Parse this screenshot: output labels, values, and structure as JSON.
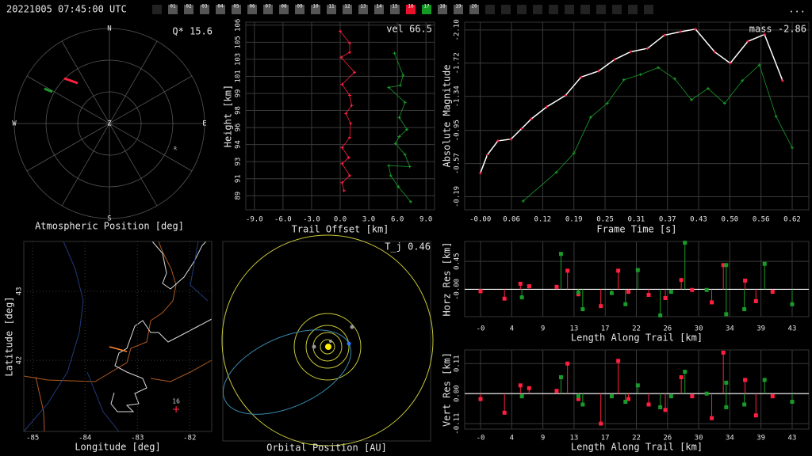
{
  "header": {
    "timestamp": "20221005 07:45:00 UTC",
    "menu": "...",
    "stations": [
      {
        "label": "01"
      },
      {
        "label": "02"
      },
      {
        "label": "03"
      },
      {
        "label": "04"
      },
      {
        "label": "05"
      },
      {
        "label": "06"
      },
      {
        "label": "07"
      },
      {
        "label": "08"
      },
      {
        "label": "09"
      },
      {
        "label": "10"
      },
      {
        "label": "11"
      },
      {
        "label": "12"
      },
      {
        "label": "13"
      },
      {
        "label": "14"
      },
      {
        "label": "15"
      },
      {
        "label": "16",
        "color": "#e8102a"
      },
      {
        "label": "17",
        "color": "#129a22"
      },
      {
        "label": "18"
      },
      {
        "label": "19"
      },
      {
        "label": "20"
      }
    ]
  },
  "chart_data": [
    {
      "type": "polar",
      "xlabel": "Atmospheric Position [deg]",
      "annotation": "Q* 15.6",
      "directions": [
        "N",
        "E",
        "S",
        "W"
      ],
      "center_label": "Z",
      "marker_label": "R"
    },
    {
      "type": "line",
      "xlabel": "Trail Offset [km]",
      "ylabel": "Height [km]",
      "annotation": "vel 66.5",
      "grid": true,
      "xlim": [
        -9.9,
        9.9
      ],
      "ylim": [
        87.8,
        106.5
      ],
      "xticks": [
        {
          "value": -9,
          "label": "-9.0"
        },
        {
          "value": -6,
          "label": "-6.0"
        },
        {
          "value": -3,
          "label": "-3.0"
        },
        {
          "value": 0,
          "label": "0.0"
        },
        {
          "value": 3,
          "label": "3.0"
        },
        {
          "value": 6,
          "label": "6.0"
        },
        {
          "value": 9,
          "label": "9.0"
        }
      ],
      "yticks": [
        {
          "value": 89.2,
          "label": "89"
        },
        {
          "value": 90.9,
          "label": "91"
        },
        {
          "value": 92.6,
          "label": "93"
        },
        {
          "value": 94.3,
          "label": "94"
        },
        {
          "value": 96.0,
          "label": "96"
        },
        {
          "value": 97.7,
          "label": "98"
        },
        {
          "value": 99.4,
          "label": "99"
        },
        {
          "value": 101.1,
          "label": "101"
        },
        {
          "value": 102.8,
          "label": "103"
        },
        {
          "value": 104.5,
          "label": "105"
        },
        {
          "value": 106.2,
          "label": "106"
        }
      ],
      "series": [
        {
          "color": "#ff2040",
          "x": [
            0.0,
            1.0,
            1.0,
            0.1,
            1.5,
            0.2,
            1.0,
            1.2,
            0.6,
            1.1,
            1.0,
            0.2,
            0.9,
            0.2,
            1.0,
            0.2,
            0.4
          ],
          "values": [
            105.6,
            104.4,
            103.5,
            103.0,
            101.5,
            100.3,
            99.2,
            98.2,
            97.4,
            96.4,
            95.0,
            94.0,
            93.0,
            92.4,
            91.2,
            90.5,
            89.7
          ]
        },
        {
          "color": "#1a9a2a",
          "x": [
            5.7,
            6.6,
            6.3,
            5.1,
            6.8,
            6.2,
            7.0,
            6.2,
            5.8,
            6.8,
            7.3,
            5.1,
            5.3,
            6.1,
            7.4
          ],
          "values": [
            103.4,
            101.2,
            100.2,
            100.0,
            98.5,
            97.0,
            95.8,
            95.1,
            94.4,
            93.3,
            92.1,
            92.2,
            91.2,
            90.1,
            88.6
          ]
        }
      ]
    },
    {
      "type": "line",
      "xlabel": "Frame Time [s]",
      "ylabel": "Absolute Magnitude",
      "annotation": "mass -2.86",
      "grid": true,
      "xlim": [
        -0.031,
        0.652
      ],
      "ylim": [
        -0.04,
        -2.19
      ],
      "xticks": [
        {
          "value": 0,
          "label": "-0.00"
        },
        {
          "value": 0.0619,
          "label": "0.06"
        },
        {
          "value": 0.1238,
          "label": "0.12"
        },
        {
          "value": 0.1857,
          "label": "0.19"
        },
        {
          "value": 0.2476,
          "label": "0.25"
        },
        {
          "value": 0.3095,
          "label": "0.31"
        },
        {
          "value": 0.3714,
          "label": "0.37"
        },
        {
          "value": 0.4333,
          "label": "0.43"
        },
        {
          "value": 0.4952,
          "label": "0.50"
        },
        {
          "value": 0.5571,
          "label": "0.56"
        },
        {
          "value": 0.619,
          "label": "0.62"
        }
      ],
      "yticks": [
        {
          "value": -2.1,
          "label": "-2.10"
        },
        -1.72,
        -1.34,
        -0.95,
        -0.57,
        -0.19
      ],
      "series": [
        {
          "color": "#ff2040",
          "line_color": "#ffffff",
          "x": [
            0.0,
            0.014,
            0.035,
            0.061,
            0.082,
            0.101,
            0.132,
            0.169,
            0.2,
            0.235,
            0.266,
            0.298,
            0.332,
            0.365,
            0.397,
            0.427,
            0.465,
            0.496,
            0.531,
            0.564,
            0.6
          ],
          "values": [
            -0.46,
            -0.67,
            -0.83,
            -0.85,
            -0.97,
            -1.08,
            -1.22,
            -1.35,
            -1.56,
            -1.63,
            -1.76,
            -1.85,
            -1.89,
            -2.04,
            -2.08,
            -2.11,
            -1.85,
            -1.72,
            -1.97,
            -2.05,
            -1.52
          ]
        },
        {
          "color": "#1a9a2a",
          "x": [
            0.085,
            0.151,
            0.186,
            0.219,
            0.252,
            0.285,
            0.318,
            0.353,
            0.386,
            0.419,
            0.452,
            0.485,
            0.52,
            0.554,
            0.587,
            0.619
          ],
          "values": [
            -0.14,
            -0.47,
            -0.69,
            -1.1,
            -1.26,
            -1.53,
            -1.59,
            -1.67,
            -1.54,
            -1.3,
            -1.43,
            -1.26,
            -1.52,
            -1.7,
            -1.11,
            -0.75
          ]
        }
      ]
    },
    {
      "type": "map",
      "xlabel": "Longitude [deg]",
      "ylabel": "Latitude [deg]",
      "grid": true,
      "xlim": [
        -85.17,
        -81.58
      ],
      "ylim": [
        40.97,
        43.72
      ],
      "xticks": [
        -85,
        -84,
        -83,
        -82
      ],
      "yticks": [
        42,
        43
      ],
      "station": {
        "label": "16",
        "lon": -82.26,
        "lat": 41.29
      }
    },
    {
      "type": "orbit",
      "xlabel": "Orbital Position [AU]",
      "annotation": "T_j 0.46"
    },
    {
      "type": "stem",
      "xlabel": "Length Along Trail [km]",
      "ylabel": "Horz Res [km]",
      "grid": true,
      "xlim": [
        -2.19,
        45.3
      ],
      "ylim": [
        -0.44,
        0.77
      ],
      "xticks": [
        {
          "value": 0,
          "label": "-0"
        },
        {
          "value": 4.3,
          "label": "4"
        },
        {
          "value": 8.6,
          "label": "9"
        },
        {
          "value": 12.9,
          "label": "13"
        },
        {
          "value": 17.2,
          "label": "17"
        },
        {
          "value": 21.5,
          "label": "22"
        },
        {
          "value": 25.8,
          "label": "26"
        },
        {
          "value": 30.1,
          "label": "30"
        },
        {
          "value": 34.4,
          "label": "34"
        },
        {
          "value": 38.7,
          "label": "39"
        },
        {
          "value": 43.0,
          "label": "43"
        }
      ],
      "yticks": [
        {
          "value": 0,
          "label": "-0.00"
        },
        0.45
      ],
      "series": [
        {
          "color": "#ff2040",
          "x": [
            0.0,
            3.3,
            5.5,
            6.7,
            10.5,
            12.0,
            13.5,
            16.6,
            19.0,
            20.4,
            23.2,
            25.5,
            27.7,
            29.2,
            31.9,
            33.5,
            36.5,
            38.0,
            40.3
          ],
          "values": [
            -0.03,
            -0.15,
            0.09,
            0.05,
            0.04,
            0.3,
            -0.08,
            -0.27,
            0.3,
            -0.04,
            -0.09,
            -0.14,
            0.15,
            -0.01,
            -0.21,
            0.39,
            0.14,
            -0.19,
            -0.04
          ]
        },
        {
          "color": "#1a9a2a",
          "x": [
            5.7,
            11.1,
            13.5,
            14.1,
            18.1,
            20.0,
            21.7,
            24.8,
            26.3,
            28.2,
            31.2,
            33.9,
            33.9,
            36.4,
            39.2,
            43.0
          ],
          "values": [
            -0.13,
            0.57,
            -0.05,
            -0.32,
            -0.06,
            -0.24,
            0.31,
            -0.42,
            -0.04,
            0.75,
            -0.01,
            0.39,
            -0.4,
            -0.32,
            0.41,
            -0.24
          ]
        }
      ]
    },
    {
      "type": "stem",
      "xlabel": "Length Along Trail [km]",
      "ylabel": "Vert Res [km]",
      "grid": true,
      "xlim": [
        -2.19,
        45.3
      ],
      "ylim": [
        -0.13,
        0.16
      ],
      "xticks": [
        {
          "value": 0,
          "label": "-0"
        },
        {
          "value": 4.3,
          "label": "4"
        },
        {
          "value": 8.6,
          "label": "9"
        },
        {
          "value": 12.9,
          "label": "13"
        },
        {
          "value": 17.2,
          "label": "17"
        },
        {
          "value": 21.5,
          "label": "22"
        },
        {
          "value": 25.8,
          "label": "26"
        },
        {
          "value": 30.1,
          "label": "30"
        },
        {
          "value": 34.4,
          "label": "34"
        },
        {
          "value": 38.7,
          "label": "39"
        },
        {
          "value": 43.0,
          "label": "43"
        }
      ],
      "yticks": [
        -0.11,
        {
          "value": 0,
          "label": "0.00"
        },
        0.11
      ],
      "series": [
        {
          "color": "#ff2040",
          "x": [
            0.0,
            3.3,
            5.5,
            6.7,
            10.5,
            12.0,
            13.5,
            16.6,
            19.0,
            20.4,
            23.2,
            25.5,
            27.7,
            29.2,
            31.9,
            33.5,
            36.5,
            38.0,
            40.3
          ],
          "values": [
            -0.02,
            -0.07,
            0.03,
            0.02,
            0.01,
            0.11,
            -0.02,
            -0.11,
            0.12,
            -0.02,
            -0.04,
            -0.06,
            0.06,
            -0.01,
            -0.09,
            0.15,
            0.05,
            -0.08,
            -0.01
          ]
        },
        {
          "color": "#1a9a2a",
          "x": [
            5.7,
            11.1,
            13.5,
            14.1,
            18.1,
            20.0,
            21.7,
            24.8,
            26.3,
            28.2,
            31.2,
            33.9,
            33.9,
            36.4,
            39.2,
            43.0
          ],
          "values": [
            -0.01,
            0.06,
            -0.01,
            -0.04,
            -0.01,
            -0.03,
            0.03,
            -0.05,
            -0.01,
            0.08,
            0.0,
            0.04,
            -0.05,
            -0.04,
            0.05,
            -0.03
          ]
        }
      ]
    }
  ]
}
